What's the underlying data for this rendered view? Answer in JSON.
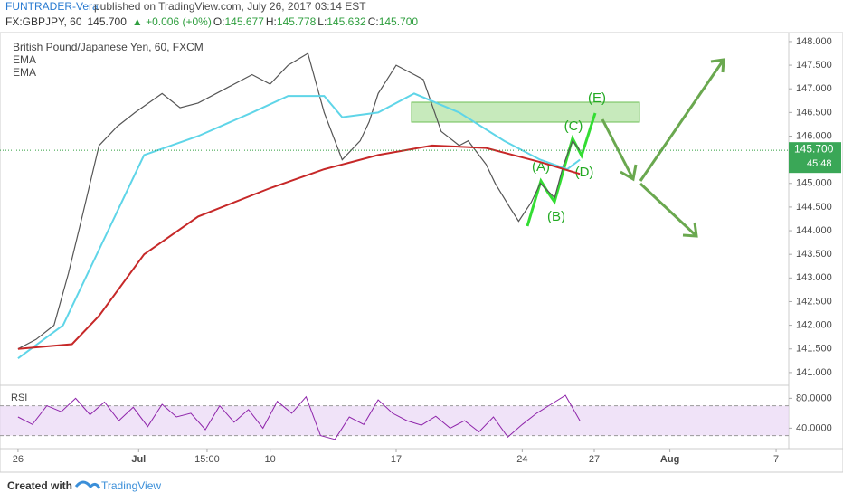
{
  "header": {
    "author": "FUNTRADER-Vera",
    "published": "published on TradingView.com, July 26, 2017 03:14 EST",
    "symbol": "FX:GBPJPY, 60",
    "price": "145.700",
    "change": "▲ +0.006 (+0%)",
    "ohlc": [
      {
        "label": "O:",
        "value": "145.677"
      },
      {
        "label": "H:",
        "value": "145.778"
      },
      {
        "label": "L:",
        "value": "145.632"
      },
      {
        "label": "C:",
        "value": "145.700"
      }
    ]
  },
  "chart_data": [
    {
      "type": "line",
      "legend_title": "British Pound/Japanese Yen, 60, FXCM",
      "series": [
        {
          "name": "British Pound/Japanese Yen, 60, FXCM",
          "color": "#555555",
          "x": [
            0,
            1,
            2,
            2.8,
            3.5,
            4.5,
            5.5,
            6.5,
            8,
            9,
            10,
            11.5,
            13,
            14,
            15,
            16.1,
            17,
            18,
            19,
            19.5,
            20,
            21,
            22,
            22.5,
            23.5,
            24.5,
            25,
            26,
            26.5,
            27.3,
            27.8,
            28.5,
            29,
            29.8,
            30.3,
            30.8,
            31.2
          ],
          "values": [
            141.5,
            141.7,
            142.0,
            143.1,
            144.2,
            145.8,
            146.2,
            146.5,
            146.9,
            146.6,
            146.7,
            147.0,
            147.3,
            147.1,
            147.5,
            147.75,
            146.5,
            145.5,
            145.9,
            146.3,
            146.9,
            147.5,
            147.3,
            147.2,
            146.1,
            145.8,
            145.9,
            145.4,
            145.0,
            144.5,
            144.2,
            144.6,
            145.0,
            144.7,
            145.4,
            145.9,
            145.7
          ]
        },
        {
          "name": "EMA",
          "color": "#5fd5e8",
          "x": [
            0,
            2.5,
            5,
            7,
            10,
            13,
            15,
            17,
            18,
            20,
            22,
            24.5,
            27,
            29,
            30.5,
            31.2
          ],
          "values": [
            141.3,
            142.0,
            144.0,
            145.6,
            146.0,
            146.5,
            146.85,
            146.85,
            146.4,
            146.5,
            146.9,
            146.5,
            145.9,
            145.5,
            145.3,
            145.5
          ]
        },
        {
          "name": "EMA",
          "color": "#c62828",
          "x": [
            0,
            3,
            4.5,
            7,
            10,
            14,
            17,
            20,
            23,
            26,
            29,
            31.2
          ],
          "values": [
            141.5,
            141.6,
            142.2,
            143.5,
            144.3,
            144.9,
            145.3,
            145.6,
            145.8,
            145.75,
            145.45,
            145.2
          ]
        }
      ],
      "xlim": [
        -1,
        42.8
      ],
      "ylim": [
        140.73,
        148.19
      ],
      "xticks": [
        {
          "value": 0,
          "label": "26"
        },
        {
          "value": 6.7,
          "label": "Jul"
        },
        {
          "value": 10.5,
          "label": "15:00"
        },
        {
          "value": 14,
          "label": "10"
        },
        {
          "value": 21,
          "label": "17"
        },
        {
          "value": 28,
          "label": "24"
        },
        {
          "value": 32,
          "label": "27"
        },
        {
          "value": 36.2,
          "label": "Aug"
        },
        {
          "value": 42.1,
          "label": "7"
        }
      ],
      "yticks": [
        {
          "value": 141,
          "label": "141.000"
        },
        {
          "value": 141.5,
          "label": "141.500"
        },
        {
          "value": 142,
          "label": "142.000"
        },
        {
          "value": 142.5,
          "label": "142.500"
        },
        {
          "value": 143,
          "label": "143.000"
        },
        {
          "value": 143.5,
          "label": "143.500"
        },
        {
          "value": 144,
          "label": "144.000"
        },
        {
          "value": 144.5,
          "label": "144.500"
        },
        {
          "value": 145,
          "label": "145.000"
        },
        {
          "value": 145.5,
          "label": "145.500"
        },
        {
          "value": 146,
          "label": "146.000"
        },
        {
          "value": 146.5,
          "label": "146.500"
        },
        {
          "value": 147,
          "label": "147.000"
        },
        {
          "value": 147.5,
          "label": "147.500"
        },
        {
          "value": 148,
          "label": "148.000"
        }
      ],
      "last_price": {
        "value": 145.7,
        "label": "145.700"
      },
      "countdown": "45:48",
      "annotations": [
        "(A)",
        "(B)",
        "(C)",
        "(D)",
        "(E)"
      ]
    },
    {
      "type": "line",
      "title": "RSI",
      "x": [
        0,
        0.8,
        1.6,
        2.4,
        3.2,
        4,
        4.8,
        5.6,
        6.4,
        7.2,
        8,
        8.8,
        9.6,
        10.4,
        11.2,
        12,
        12.8,
        13.6,
        14.4,
        15.2,
        16,
        16.8,
        17.6,
        18.4,
        19.2,
        20,
        20.8,
        21.6,
        22.4,
        23.2,
        24,
        24.8,
        25.6,
        26.4,
        27.2,
        28,
        28.8,
        29.6,
        30.4,
        31.2
      ],
      "values": [
        55,
        45,
        70,
        62,
        80,
        58,
        75,
        50,
        68,
        42,
        72,
        55,
        60,
        38,
        70,
        48,
        65,
        40,
        76,
        60,
        82,
        30,
        25,
        55,
        45,
        78,
        60,
        50,
        44,
        56,
        40,
        50,
        35,
        55,
        28,
        45,
        60,
        72,
        84,
        50
      ],
      "color": "#8e24aa",
      "band": [
        30,
        70
      ],
      "ylim": [
        15,
        95
      ],
      "yticks": [
        {
          "value": 80,
          "label": "80.0000"
        },
        {
          "value": 40,
          "label": "40.0000"
        }
      ]
    }
  ],
  "footer": {
    "created": "Created with",
    "brand": "TradingView"
  }
}
